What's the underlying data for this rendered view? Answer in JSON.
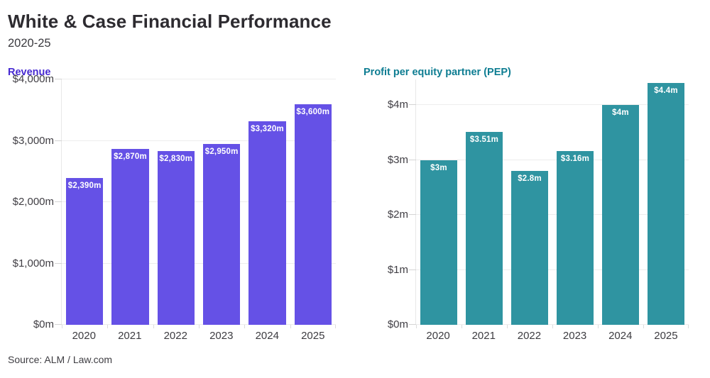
{
  "header": {
    "title": "White & Case Financial Performance",
    "subtitle": "2020-25"
  },
  "footer": {
    "source": "Source: ALM / Law.com"
  },
  "colors": {
    "revenue_bar": "#6551e6",
    "revenue_title": "#4629d2",
    "pep_bar": "#2f94a1",
    "pep_title": "#0e7d92",
    "gridline": "#ededed",
    "axis_text": "#403e44"
  },
  "chart_data": [
    {
      "type": "bar",
      "title": "Revenue",
      "categories": [
        "2020",
        "2021",
        "2022",
        "2023",
        "2024",
        "2025"
      ],
      "values": [
        2390,
        2870,
        2830,
        2950,
        3320,
        3600
      ],
      "bar_labels": [
        "$2,390m",
        "$2,870m",
        "$2,830m",
        "$2,950m",
        "$3,320m",
        "$3,600m"
      ],
      "yticks": [
        {
          "value": 0,
          "label": "$0m"
        },
        {
          "value": 1000,
          "label": "$1,000m"
        },
        {
          "value": 2000,
          "label": "$2,000m"
        },
        {
          "value": 3000,
          "label": "$3,000m"
        },
        {
          "value": 4000,
          "label": "$4,000m"
        }
      ],
      "ylim": [
        0,
        4000
      ],
      "grid": "horizontal",
      "legend": "none",
      "bar_color": "#6551e6",
      "title_color": "#4629d2"
    },
    {
      "type": "bar",
      "title": "Profit per equity partner (PEP)",
      "categories": [
        "2020",
        "2021",
        "2022",
        "2023",
        "2024",
        "2025"
      ],
      "values": [
        3,
        3.51,
        2.8,
        3.16,
        4,
        4.4
      ],
      "bar_labels": [
        "$3m",
        "$3.51m",
        "$2.8m",
        "$3.16m",
        "$4m",
        "$4.4m"
      ],
      "yticks": [
        {
          "value": 0,
          "label": "$0m"
        },
        {
          "value": 1,
          "label": "$1m"
        },
        {
          "value": 2,
          "label": "$2m"
        },
        {
          "value": 3,
          "label": "$3m"
        },
        {
          "value": 4,
          "label": "$4m"
        }
      ],
      "ylim": [
        0,
        4.47
      ],
      "grid": "horizontal",
      "legend": "none",
      "bar_color": "#2f94a1",
      "title_color": "#0e7d92"
    }
  ]
}
